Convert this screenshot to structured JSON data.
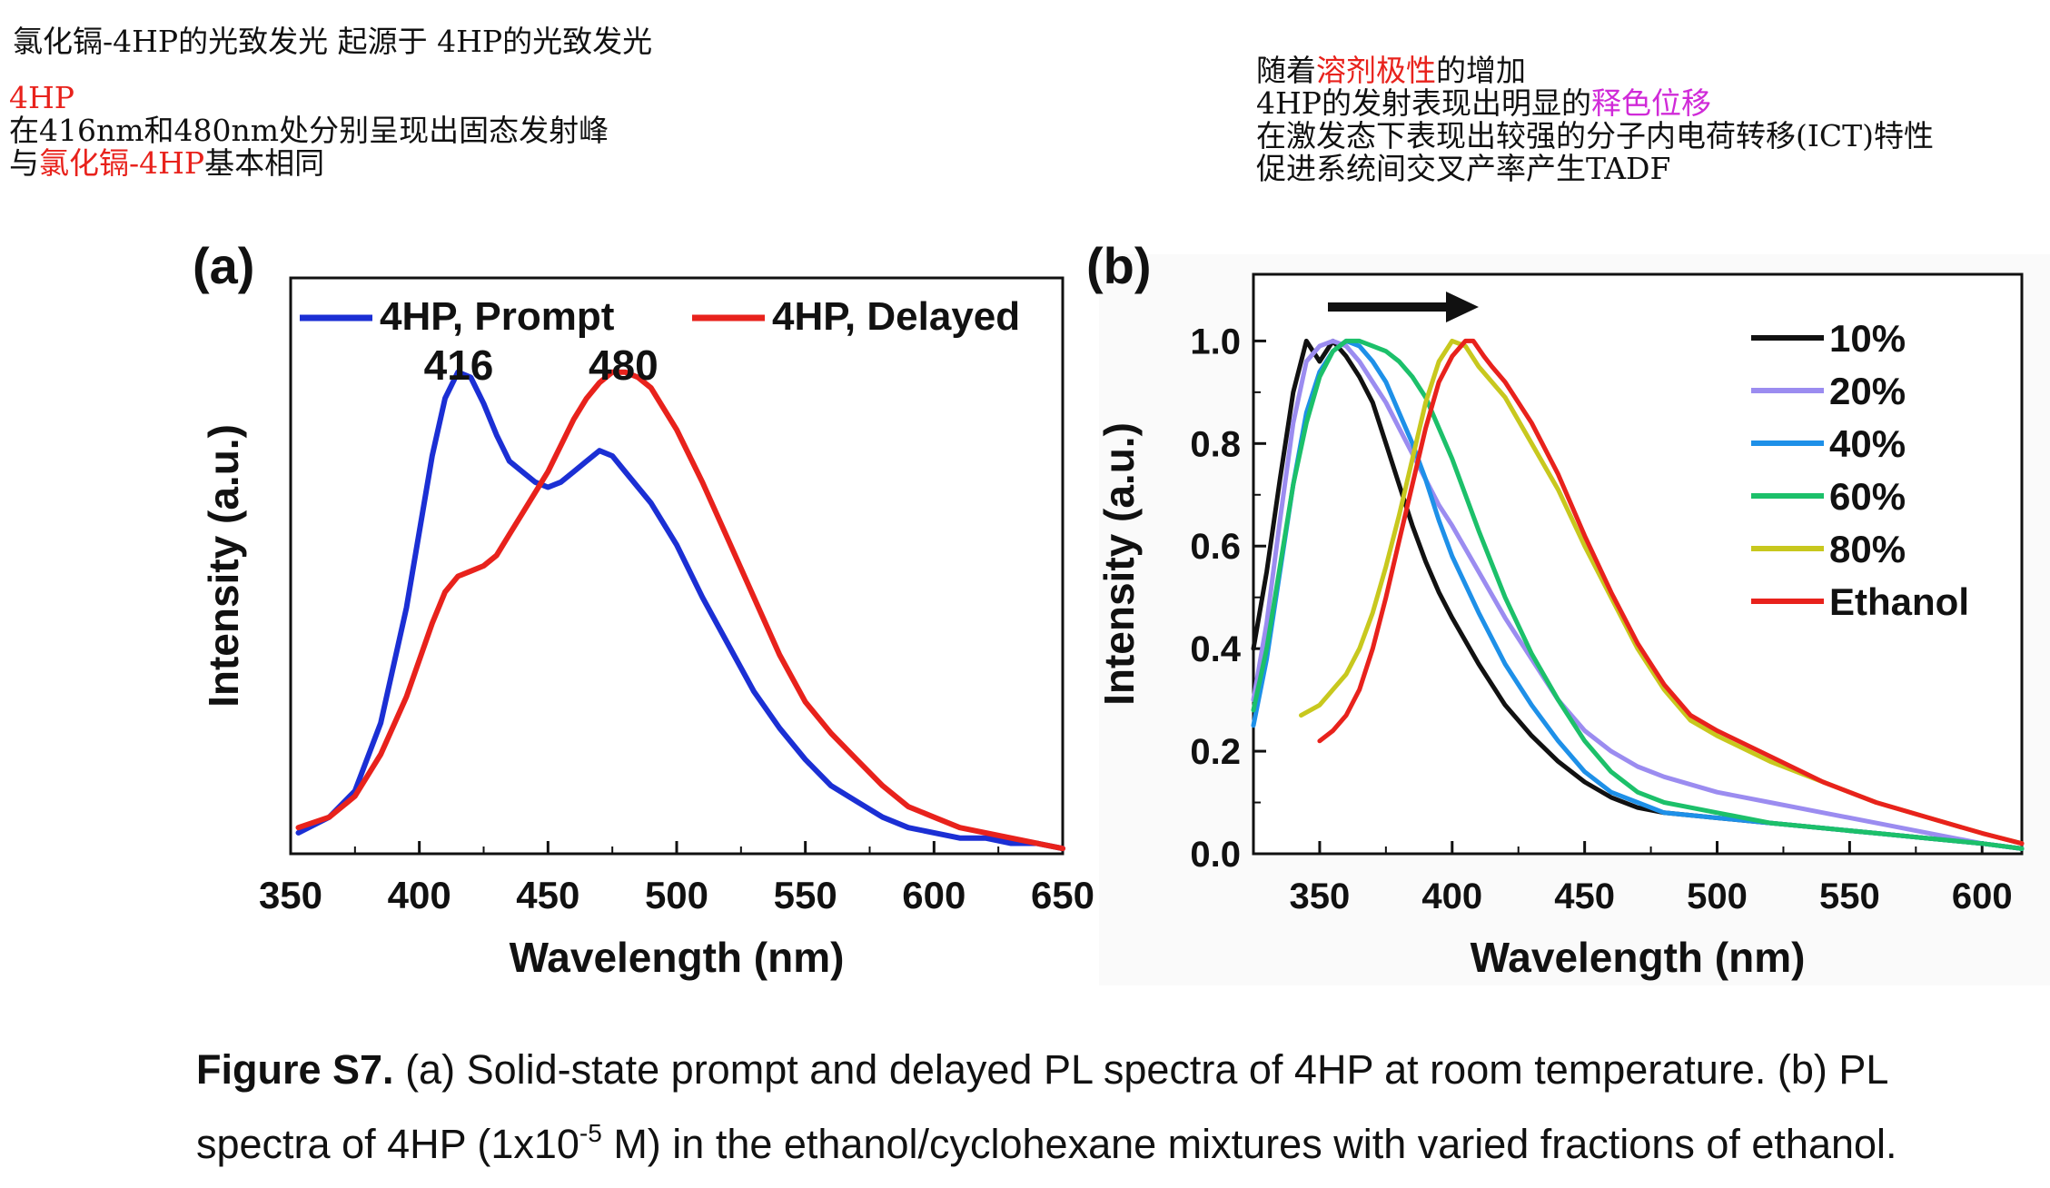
{
  "notes": {
    "left_title": "氯化镉-4HP的光致发光 起源于 4HP的光致发光",
    "left_line1": "4HP",
    "left_line2": "在416nm和480nm处分别呈现出固态发射峰",
    "left_line3_prefix": "与",
    "left_line3_red": "氯化镉-4HP",
    "left_line3_suffix": "基本相同",
    "right_line1_prefix": "随着",
    "right_line1_red": "溶剂极性",
    "right_line1_suffix": "的增加",
    "right_line2_prefix": "4HP的发射表现出明显的",
    "right_line2_magenta": "释色位移",
    "right_line3": "在激发态下表现出较强的分子内电荷转移(ICT)特性",
    "right_line4": "促进系统间交叉产率产生TADF"
  },
  "colors": {
    "blue": "#1b2fd4",
    "red": "#e8221c",
    "black": "#111111",
    "lavender": "#9b8cf0",
    "skyblue": "#1e90e8",
    "green": "#1cc06a",
    "olive": "#c8c81e"
  },
  "caption": {
    "label": "Figure S7.",
    "part1": " (a) Solid-state prompt and delayed PL spectra of 4HP at room temperature. (b) PL",
    "part2a": "spectra of 4HP (1x10",
    "sup": "-5",
    "part2b": " M) in the ethanol/cyclohexane mixtures with varied fractions of ethanol."
  },
  "chart_data": [
    {
      "type": "line",
      "panel_label": "(a)",
      "xlabel": "Wavelength (nm)",
      "ylabel": "Intensity (a.u.)",
      "xlim": [
        350,
        650
      ],
      "ylim": [
        0,
        1
      ],
      "xticks": [
        350,
        400,
        450,
        500,
        550,
        600,
        650
      ],
      "yticks": [],
      "legend_position": "top",
      "annotations": [
        {
          "text": "416",
          "x": 416
        },
        {
          "text": "480",
          "x": 480
        }
      ],
      "series": [
        {
          "name": "4HP, Prompt",
          "color_key": "blue",
          "x": [
            353,
            365,
            375,
            385,
            395,
            405,
            410,
            415,
            420,
            425,
            430,
            435,
            440,
            445,
            450,
            455,
            460,
            465,
            470,
            475,
            480,
            490,
            500,
            510,
            520,
            530,
            540,
            550,
            560,
            570,
            580,
            590,
            600,
            610,
            620,
            630,
            640,
            650
          ],
          "y": [
            0.04,
            0.07,
            0.12,
            0.25,
            0.47,
            0.76,
            0.87,
            0.92,
            0.91,
            0.86,
            0.8,
            0.75,
            0.73,
            0.71,
            0.7,
            0.71,
            0.73,
            0.75,
            0.77,
            0.76,
            0.73,
            0.67,
            0.59,
            0.49,
            0.4,
            0.31,
            0.24,
            0.18,
            0.13,
            0.1,
            0.07,
            0.05,
            0.04,
            0.03,
            0.03,
            0.02,
            0.02,
            0.01
          ]
        },
        {
          "name": "4HP, Delayed",
          "color_key": "red",
          "x": [
            353,
            365,
            375,
            385,
            395,
            405,
            410,
            415,
            420,
            425,
            430,
            435,
            440,
            445,
            450,
            455,
            460,
            465,
            470,
            475,
            480,
            485,
            490,
            500,
            510,
            520,
            530,
            540,
            550,
            560,
            570,
            580,
            590,
            600,
            610,
            620,
            630,
            640,
            650
          ],
          "y": [
            0.05,
            0.07,
            0.11,
            0.19,
            0.3,
            0.44,
            0.5,
            0.53,
            0.54,
            0.55,
            0.57,
            0.61,
            0.65,
            0.69,
            0.73,
            0.78,
            0.83,
            0.87,
            0.9,
            0.92,
            0.92,
            0.91,
            0.89,
            0.81,
            0.71,
            0.6,
            0.49,
            0.38,
            0.29,
            0.23,
            0.18,
            0.13,
            0.09,
            0.07,
            0.05,
            0.04,
            0.03,
            0.02,
            0.01
          ]
        }
      ]
    },
    {
      "type": "line",
      "panel_label": "(b)",
      "xlabel": "Wavelength (nm)",
      "ylabel": "Intensity (a.u.)",
      "xlim": [
        325,
        615
      ],
      "ylim": [
        0,
        1.0
      ],
      "xticks": [
        350,
        400,
        450,
        500,
        550,
        600
      ],
      "yticks": [
        0.0,
        0.2,
        0.4,
        0.6,
        0.8,
        1.0
      ],
      "ytick_labels": [
        "0.0",
        "0.2",
        "0.4",
        "0.6",
        "0.8",
        "1.0"
      ],
      "legend_position": "right",
      "series": [
        {
          "name": "10%",
          "color_key": "black",
          "x": [
            325,
            330,
            335,
            340,
            345,
            350,
            355,
            360,
            365,
            370,
            375,
            380,
            385,
            390,
            395,
            400,
            410,
            420,
            430,
            440,
            450,
            460,
            470,
            480,
            500,
            520,
            540,
            560,
            580,
            600,
            615
          ],
          "y": [
            0.4,
            0.55,
            0.73,
            0.9,
            1.0,
            0.96,
            1.0,
            0.97,
            0.93,
            0.88,
            0.8,
            0.72,
            0.64,
            0.57,
            0.51,
            0.46,
            0.37,
            0.29,
            0.23,
            0.18,
            0.14,
            0.11,
            0.09,
            0.08,
            0.07,
            0.06,
            0.05,
            0.04,
            0.03,
            0.02,
            0.01
          ]
        },
        {
          "name": "20%",
          "color_key": "lavender",
          "x": [
            325,
            330,
            335,
            340,
            345,
            350,
            355,
            360,
            365,
            370,
            375,
            380,
            385,
            390,
            395,
            400,
            410,
            420,
            430,
            440,
            450,
            460,
            470,
            480,
            500,
            520,
            540,
            560,
            580,
            600,
            615
          ],
          "y": [
            0.3,
            0.45,
            0.65,
            0.84,
            0.96,
            0.99,
            1.0,
            0.99,
            0.96,
            0.92,
            0.88,
            0.83,
            0.78,
            0.73,
            0.68,
            0.64,
            0.55,
            0.46,
            0.38,
            0.3,
            0.24,
            0.2,
            0.17,
            0.15,
            0.12,
            0.1,
            0.08,
            0.06,
            0.04,
            0.02,
            0.01
          ]
        },
        {
          "name": "40%",
          "color_key": "skyblue",
          "x": [
            325,
            330,
            335,
            340,
            345,
            350,
            355,
            360,
            365,
            370,
            375,
            380,
            385,
            390,
            395,
            400,
            410,
            420,
            430,
            440,
            450,
            460,
            470,
            480,
            500,
            520,
            540,
            560,
            580,
            600,
            615
          ],
          "y": [
            0.25,
            0.38,
            0.55,
            0.72,
            0.86,
            0.94,
            0.98,
            1.0,
            0.99,
            0.96,
            0.92,
            0.86,
            0.8,
            0.73,
            0.65,
            0.58,
            0.47,
            0.37,
            0.29,
            0.22,
            0.16,
            0.12,
            0.1,
            0.08,
            0.07,
            0.06,
            0.05,
            0.04,
            0.03,
            0.02,
            0.01
          ]
        },
        {
          "name": "60%",
          "color_key": "green",
          "x": [
            325,
            330,
            335,
            340,
            345,
            350,
            355,
            360,
            365,
            370,
            375,
            380,
            385,
            390,
            395,
            400,
            410,
            420,
            430,
            440,
            450,
            460,
            470,
            480,
            500,
            520,
            540,
            560,
            580,
            600,
            615
          ],
          "y": [
            0.28,
            0.4,
            0.56,
            0.72,
            0.84,
            0.93,
            0.98,
            1.0,
            1.0,
            0.99,
            0.98,
            0.96,
            0.93,
            0.89,
            0.83,
            0.77,
            0.63,
            0.5,
            0.39,
            0.3,
            0.22,
            0.16,
            0.12,
            0.1,
            0.08,
            0.06,
            0.05,
            0.04,
            0.03,
            0.02,
            0.01
          ]
        },
        {
          "name": "80%",
          "color_key": "olive",
          "x": [
            343,
            350,
            355,
            360,
            365,
            370,
            375,
            380,
            385,
            390,
            395,
            400,
            405,
            410,
            415,
            420,
            430,
            440,
            450,
            460,
            470,
            480,
            490,
            500,
            520,
            540,
            560,
            580,
            600,
            615
          ],
          "y": [
            0.27,
            0.29,
            0.32,
            0.35,
            0.4,
            0.47,
            0.56,
            0.66,
            0.77,
            0.88,
            0.96,
            1.0,
            0.99,
            0.95,
            0.92,
            0.89,
            0.8,
            0.71,
            0.6,
            0.5,
            0.4,
            0.32,
            0.26,
            0.23,
            0.18,
            0.14,
            0.1,
            0.07,
            0.04,
            0.02
          ]
        },
        {
          "name": "Ethanol",
          "color_key": "red",
          "x": [
            350,
            355,
            360,
            365,
            370,
            375,
            380,
            385,
            390,
            395,
            400,
            405,
            408,
            412,
            415,
            420,
            430,
            440,
            450,
            460,
            470,
            480,
            490,
            500,
            520,
            540,
            560,
            580,
            600,
            615
          ],
          "y": [
            0.22,
            0.24,
            0.27,
            0.32,
            0.4,
            0.5,
            0.61,
            0.72,
            0.83,
            0.92,
            0.97,
            1.0,
            1.0,
            0.97,
            0.95,
            0.92,
            0.84,
            0.74,
            0.62,
            0.51,
            0.41,
            0.33,
            0.27,
            0.24,
            0.19,
            0.14,
            0.1,
            0.07,
            0.04,
            0.02
          ]
        }
      ]
    }
  ]
}
